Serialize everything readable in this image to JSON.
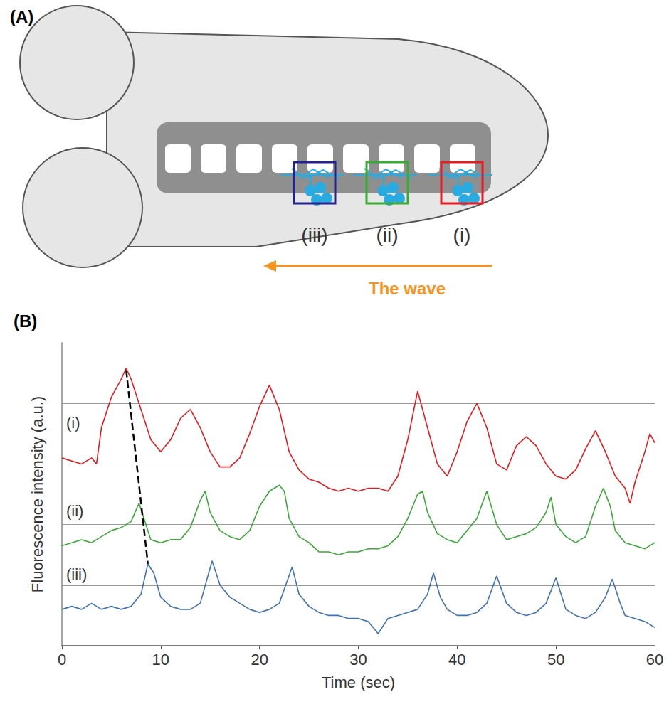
{
  "diagram": {
    "panel_label": "(A)",
    "regions": [
      {
        "label": "(iii)",
        "color": "#23238e"
      },
      {
        "label": "(ii)",
        "color": "#3aaa35"
      },
      {
        "label": "(i)",
        "color": "#e31e24"
      }
    ],
    "arrow": {
      "label": "The wave",
      "color": "#f7931e"
    }
  },
  "chart_data": {
    "type": "line",
    "panel_label": "(B)",
    "x_label": "Time (sec)",
    "y_label": "Fluorescence intensity (a.u.)",
    "xlim": [
      0,
      60
    ],
    "xticks": [
      0,
      10,
      20,
      30,
      40,
      50,
      60
    ],
    "ylim": [
      0,
      5
    ],
    "yticks": [
      0,
      1,
      2,
      3,
      4,
      5
    ],
    "grid": true,
    "tick_labels": "x",
    "series": [
      {
        "name": "(i)",
        "color": "#e8191b",
        "x": [
          0,
          1,
          2,
          3,
          3.5,
          4,
          5,
          6,
          6.5,
          7,
          8,
          9,
          10,
          11,
          12,
          13,
          14,
          15,
          16,
          17,
          18,
          19,
          20,
          21,
          22,
          23,
          24,
          25,
          26,
          27,
          28,
          29,
          30,
          31,
          32,
          33,
          34,
          35,
          36,
          37,
          38,
          39,
          40,
          41,
          42,
          43,
          44,
          45,
          46,
          47,
          48,
          49,
          50,
          51,
          52,
          53,
          54,
          55,
          56,
          57,
          57.5,
          58,
          59,
          59.5,
          60
        ],
        "values": [
          3.1,
          3.05,
          3.0,
          3.1,
          3.0,
          3.6,
          4.1,
          4.4,
          4.58,
          4.4,
          3.9,
          3.4,
          3.2,
          3.4,
          3.75,
          3.9,
          3.6,
          3.2,
          2.95,
          2.95,
          3.1,
          3.5,
          3.95,
          4.3,
          3.9,
          3.2,
          2.9,
          2.75,
          2.7,
          2.6,
          2.55,
          2.6,
          2.55,
          2.6,
          2.6,
          2.55,
          2.8,
          3.4,
          4.2,
          3.6,
          3.0,
          2.8,
          3.2,
          3.7,
          4.0,
          3.6,
          3.0,
          2.9,
          3.3,
          3.45,
          3.3,
          3.0,
          2.8,
          2.75,
          2.9,
          3.25,
          3.55,
          3.2,
          2.8,
          2.6,
          2.35,
          2.7,
          3.2,
          3.5,
          3.35
        ]
      },
      {
        "name": "(ii)",
        "color": "#3aa935",
        "x": [
          0,
          1,
          2,
          3,
          4,
          5,
          6,
          7,
          7.8,
          8.5,
          9,
          10,
          11,
          12,
          13,
          14,
          14.5,
          15,
          16,
          17,
          18,
          19,
          20,
          21,
          22,
          22.5,
          23,
          24,
          25,
          26,
          27,
          28,
          29,
          30,
          31,
          32,
          33,
          34,
          35,
          36,
          36.5,
          37,
          38,
          39,
          40,
          41,
          42,
          43,
          44,
          45,
          46,
          47,
          48,
          49,
          49.5,
          50,
          51,
          52,
          53,
          54,
          54.8,
          55.5,
          56,
          57,
          58,
          59,
          60
        ],
        "values": [
          1.65,
          1.7,
          1.75,
          1.7,
          1.8,
          1.9,
          1.95,
          2.05,
          2.35,
          2.0,
          1.75,
          1.7,
          1.75,
          1.75,
          1.95,
          2.4,
          2.55,
          2.2,
          1.9,
          1.8,
          1.75,
          1.9,
          2.3,
          2.55,
          2.65,
          2.55,
          2.1,
          1.8,
          1.7,
          1.55,
          1.55,
          1.5,
          1.55,
          1.55,
          1.6,
          1.6,
          1.65,
          1.8,
          2.1,
          2.5,
          2.55,
          2.2,
          1.85,
          1.75,
          1.7,
          1.9,
          2.1,
          2.55,
          2.0,
          1.75,
          1.8,
          1.85,
          1.95,
          2.2,
          2.45,
          2.0,
          1.8,
          1.7,
          1.8,
          2.3,
          2.6,
          2.3,
          1.9,
          1.7,
          1.65,
          1.6,
          1.7
        ]
      },
      {
        "name": "(iii)",
        "color": "#3f72b9",
        "x": [
          0,
          1,
          2,
          3,
          4,
          5,
          6,
          7,
          8,
          8.7,
          9.3,
          10,
          11,
          12,
          13,
          14,
          15.2,
          16,
          17,
          18,
          19,
          20,
          21,
          22,
          23.3,
          24,
          25,
          26,
          27,
          28,
          29,
          30,
          31,
          32,
          33,
          34,
          35,
          36,
          37,
          37.6,
          38.3,
          39,
          40,
          41,
          42,
          43,
          44,
          45,
          46,
          47,
          48,
          49,
          50,
          51,
          52,
          53,
          54,
          55,
          55.7,
          56.5,
          57,
          58,
          59,
          60
        ],
        "values": [
          0.6,
          0.65,
          0.6,
          0.7,
          0.6,
          0.65,
          0.6,
          0.65,
          0.85,
          1.35,
          1.2,
          0.8,
          0.65,
          0.6,
          0.6,
          0.7,
          1.4,
          1.0,
          0.8,
          0.7,
          0.6,
          0.55,
          0.6,
          0.7,
          1.3,
          0.85,
          0.65,
          0.55,
          0.5,
          0.5,
          0.45,
          0.45,
          0.4,
          0.2,
          0.45,
          0.5,
          0.55,
          0.6,
          0.85,
          1.2,
          0.8,
          0.6,
          0.5,
          0.5,
          0.55,
          0.7,
          1.15,
          0.7,
          0.55,
          0.5,
          0.55,
          0.7,
          1.12,
          0.6,
          0.5,
          0.45,
          0.55,
          0.8,
          1.1,
          0.7,
          0.5,
          0.45,
          0.4,
          0.3
        ]
      }
    ],
    "connector": {
      "x": [
        6.5,
        8.7
      ],
      "values": [
        4.55,
        1.35
      ],
      "line_style": "dashed",
      "color": "#000000"
    }
  }
}
